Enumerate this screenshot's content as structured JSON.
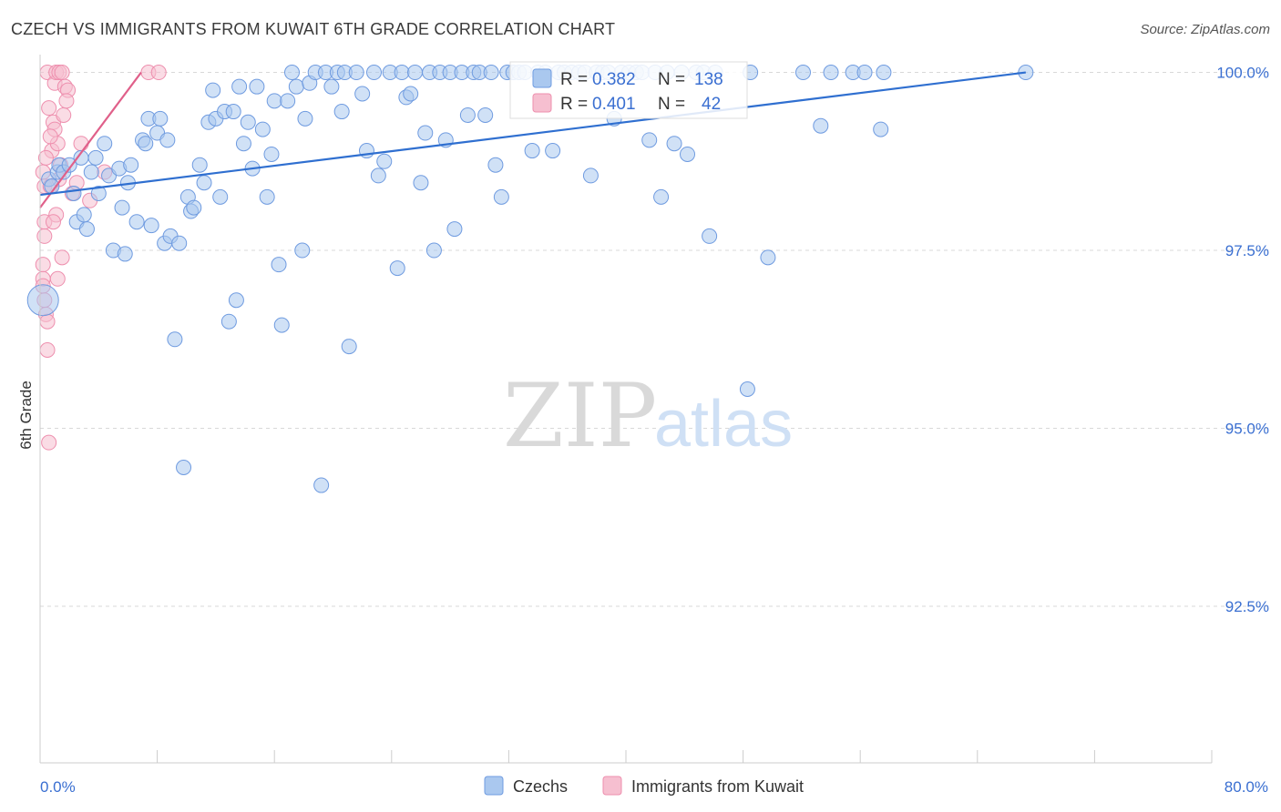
{
  "header": {
    "title": "CZECH VS IMMIGRANTS FROM KUWAIT 6TH GRADE CORRELATION CHART",
    "source": "Source: ZipAtlas.com"
  },
  "colors": {
    "czech_fill": "#aac8ef",
    "czech_stroke": "#6f9be0",
    "czech_line": "#2f6fd0",
    "kuwait_fill": "#f6bfd0",
    "kuwait_stroke": "#ee8fae",
    "kuwait_line": "#e0608a",
    "accent_text": "#3a6fd1",
    "grid": "#d8d8d8"
  },
  "legend_box": {
    "rows": [
      {
        "r_label": "R =",
        "r_value": "0.382",
        "n_label": "N =",
        "n_value": "138"
      },
      {
        "r_label": "R =",
        "r_value": "0.401",
        "n_label": "N =",
        "n_value": "42"
      }
    ]
  },
  "bottom_legend": [
    "Czechs",
    "Immigrants from Kuwait"
  ],
  "watermark": {
    "zip": "ZIP",
    "atlas": "atlas"
  },
  "chart_data": {
    "type": "scatter",
    "title": "CZECH VS IMMIGRANTS FROM KUWAIT 6TH GRADE CORRELATION CHART",
    "xlabel": "",
    "ylabel": "6th Grade",
    "xlim": [
      0,
      80
    ],
    "ylim": [
      90.3,
      100.25
    ],
    "x_tick_labels": [
      "0.0%",
      "80.0%"
    ],
    "y_ticks": [
      92.5,
      95.0,
      97.5,
      100.0
    ],
    "y_tick_labels": [
      "92.5%",
      "95.0%",
      "97.5%",
      "100.0%"
    ],
    "grid": true,
    "series": [
      {
        "name": "Czechs",
        "R": 0.382,
        "N": 138,
        "trendline": [
          [
            0,
            98.28
          ],
          [
            67.3,
            100.0
          ]
        ],
        "points": [
          [
            0.2,
            96.8
          ],
          [
            0.6,
            98.5
          ],
          [
            0.8,
            98.4
          ],
          [
            1.2,
            98.6
          ],
          [
            1.3,
            98.7
          ],
          [
            1.6,
            98.6
          ],
          [
            2.0,
            98.7
          ],
          [
            2.3,
            98.3
          ],
          [
            2.5,
            97.9
          ],
          [
            2.8,
            98.8
          ],
          [
            3.0,
            98.0
          ],
          [
            3.2,
            97.8
          ],
          [
            3.5,
            98.6
          ],
          [
            3.8,
            98.8
          ],
          [
            4.0,
            98.3
          ],
          [
            4.4,
            99.0
          ],
          [
            4.7,
            98.55
          ],
          [
            5.0,
            97.5
          ],
          [
            5.4,
            98.65
          ],
          [
            5.6,
            98.1
          ],
          [
            5.8,
            97.45
          ],
          [
            6.0,
            98.45
          ],
          [
            6.2,
            98.7
          ],
          [
            6.6,
            97.9
          ],
          [
            7.0,
            99.05
          ],
          [
            7.2,
            99.0
          ],
          [
            7.4,
            99.35
          ],
          [
            7.6,
            97.85
          ],
          [
            8.0,
            99.15
          ],
          [
            8.2,
            99.35
          ],
          [
            8.5,
            97.6
          ],
          [
            8.7,
            99.05
          ],
          [
            8.9,
            97.7
          ],
          [
            9.2,
            96.25
          ],
          [
            9.5,
            97.6
          ],
          [
            9.8,
            94.45
          ],
          [
            10.1,
            98.25
          ],
          [
            10.3,
            98.05
          ],
          [
            10.5,
            98.1
          ],
          [
            10.9,
            98.7
          ],
          [
            11.2,
            98.45
          ],
          [
            11.5,
            99.3
          ],
          [
            11.8,
            99.75
          ],
          [
            12.0,
            99.35
          ],
          [
            12.3,
            98.25
          ],
          [
            12.6,
            99.45
          ],
          [
            12.9,
            96.5
          ],
          [
            13.2,
            99.45
          ],
          [
            13.4,
            96.8
          ],
          [
            13.6,
            99.8
          ],
          [
            13.9,
            99.0
          ],
          [
            14.2,
            99.3
          ],
          [
            14.5,
            98.65
          ],
          [
            14.8,
            99.8
          ],
          [
            15.2,
            99.2
          ],
          [
            15.5,
            98.25
          ],
          [
            15.8,
            98.85
          ],
          [
            16.0,
            99.6
          ],
          [
            16.3,
            97.3
          ],
          [
            16.5,
            96.45
          ],
          [
            16.9,
            99.6
          ],
          [
            17.2,
            100.0
          ],
          [
            17.5,
            99.8
          ],
          [
            17.9,
            97.5
          ],
          [
            18.1,
            99.35
          ],
          [
            18.4,
            99.85
          ],
          [
            18.8,
            100.0
          ],
          [
            19.2,
            94.2
          ],
          [
            19.5,
            100.0
          ],
          [
            19.9,
            99.8
          ],
          [
            20.3,
            100.0
          ],
          [
            20.6,
            99.45
          ],
          [
            20.8,
            100.0
          ],
          [
            21.1,
            96.15
          ],
          [
            21.6,
            100.0
          ],
          [
            22.0,
            99.7
          ],
          [
            22.3,
            98.9
          ],
          [
            22.8,
            100.0
          ],
          [
            23.1,
            98.55
          ],
          [
            23.5,
            98.75
          ],
          [
            23.9,
            100.0
          ],
          [
            24.4,
            97.25
          ],
          [
            24.7,
            100.0
          ],
          [
            25.0,
            99.65
          ],
          [
            25.3,
            99.7
          ],
          [
            25.6,
            100.0
          ],
          [
            26.0,
            98.45
          ],
          [
            26.3,
            99.15
          ],
          [
            26.6,
            100.0
          ],
          [
            26.9,
            97.5
          ],
          [
            27.3,
            100.0
          ],
          [
            27.7,
            99.05
          ],
          [
            28.0,
            100.0
          ],
          [
            28.3,
            97.8
          ],
          [
            28.8,
            100.0
          ],
          [
            29.2,
            99.4
          ],
          [
            29.6,
            100.0
          ],
          [
            30.0,
            100.0
          ],
          [
            30.4,
            99.4
          ],
          [
            30.8,
            100.0
          ],
          [
            31.1,
            98.7
          ],
          [
            31.5,
            98.25
          ],
          [
            31.9,
            100.0
          ],
          [
            32.3,
            100.0
          ],
          [
            32.7,
            100.0
          ],
          [
            33.1,
            100.0
          ],
          [
            33.6,
            98.9
          ],
          [
            34.0,
            100.0
          ],
          [
            34.5,
            100.0
          ],
          [
            35.0,
            98.9
          ],
          [
            35.4,
            100.0
          ],
          [
            35.8,
            100.0
          ],
          [
            36.3,
            100.0
          ],
          [
            36.8,
            100.0
          ],
          [
            37.2,
            100.0
          ],
          [
            37.6,
            98.55
          ],
          [
            38.0,
            100.0
          ],
          [
            38.4,
            100.0
          ],
          [
            38.8,
            100.0
          ],
          [
            39.2,
            99.35
          ],
          [
            39.7,
            100.0
          ],
          [
            40.2,
            100.0
          ],
          [
            40.7,
            100.0
          ],
          [
            41.1,
            100.0
          ],
          [
            41.6,
            99.05
          ],
          [
            42.0,
            100.0
          ],
          [
            42.4,
            98.25
          ],
          [
            42.8,
            100.0
          ],
          [
            43.3,
            99.0
          ],
          [
            43.8,
            100.0
          ],
          [
            44.2,
            98.85
          ],
          [
            44.8,
            100.0
          ],
          [
            45.3,
            100.0
          ],
          [
            45.7,
            97.7
          ],
          [
            46.1,
            100.0
          ],
          [
            48.3,
            95.55
          ],
          [
            48.5,
            100.0
          ],
          [
            49.7,
            97.4
          ],
          [
            52.1,
            100.0
          ],
          [
            53.3,
            99.25
          ],
          [
            54.0,
            100.0
          ],
          [
            55.5,
            100.0
          ],
          [
            56.3,
            100.0
          ],
          [
            57.4,
            99.2
          ],
          [
            57.6,
            100.0
          ],
          [
            67.3,
            100.0
          ]
        ]
      },
      {
        "name": "Immigrants from Kuwait",
        "R": 0.401,
        "N": 42,
        "trendline": [
          [
            0,
            98.1
          ],
          [
            6.9,
            100.0
          ]
        ],
        "points": [
          [
            0.2,
            98.6
          ],
          [
            0.3,
            98.4
          ],
          [
            0.3,
            97.9
          ],
          [
            0.3,
            97.7
          ],
          [
            0.2,
            97.3
          ],
          [
            0.2,
            97.1
          ],
          [
            0.2,
            97.0
          ],
          [
            0.3,
            96.8
          ],
          [
            0.4,
            96.6
          ],
          [
            0.5,
            96.5
          ],
          [
            0.5,
            96.1
          ],
          [
            0.6,
            94.8
          ],
          [
            0.6,
            99.5
          ],
          [
            0.5,
            100.0
          ],
          [
            0.7,
            98.4
          ],
          [
            0.8,
            98.9
          ],
          [
            0.9,
            99.3
          ],
          [
            1.0,
            99.2
          ],
          [
            1.0,
            99.85
          ],
          [
            1.1,
            100.0
          ],
          [
            1.1,
            98.0
          ],
          [
            1.2,
            97.1
          ],
          [
            1.2,
            99.0
          ],
          [
            1.3,
            100.0
          ],
          [
            1.4,
            98.7
          ],
          [
            1.5,
            100.0
          ],
          [
            1.5,
            97.4
          ],
          [
            1.6,
            99.4
          ],
          [
            1.7,
            99.8
          ],
          [
            1.9,
            99.75
          ],
          [
            2.2,
            98.3
          ],
          [
            2.5,
            98.45
          ],
          [
            2.8,
            99.0
          ],
          [
            3.4,
            98.2
          ],
          [
            4.4,
            98.6
          ],
          [
            7.4,
            100.0
          ],
          [
            8.1,
            100.0
          ],
          [
            0.4,
            98.8
          ],
          [
            0.7,
            99.1
          ],
          [
            0.9,
            97.9
          ],
          [
            1.3,
            98.5
          ],
          [
            1.8,
            99.6
          ]
        ]
      }
    ]
  }
}
